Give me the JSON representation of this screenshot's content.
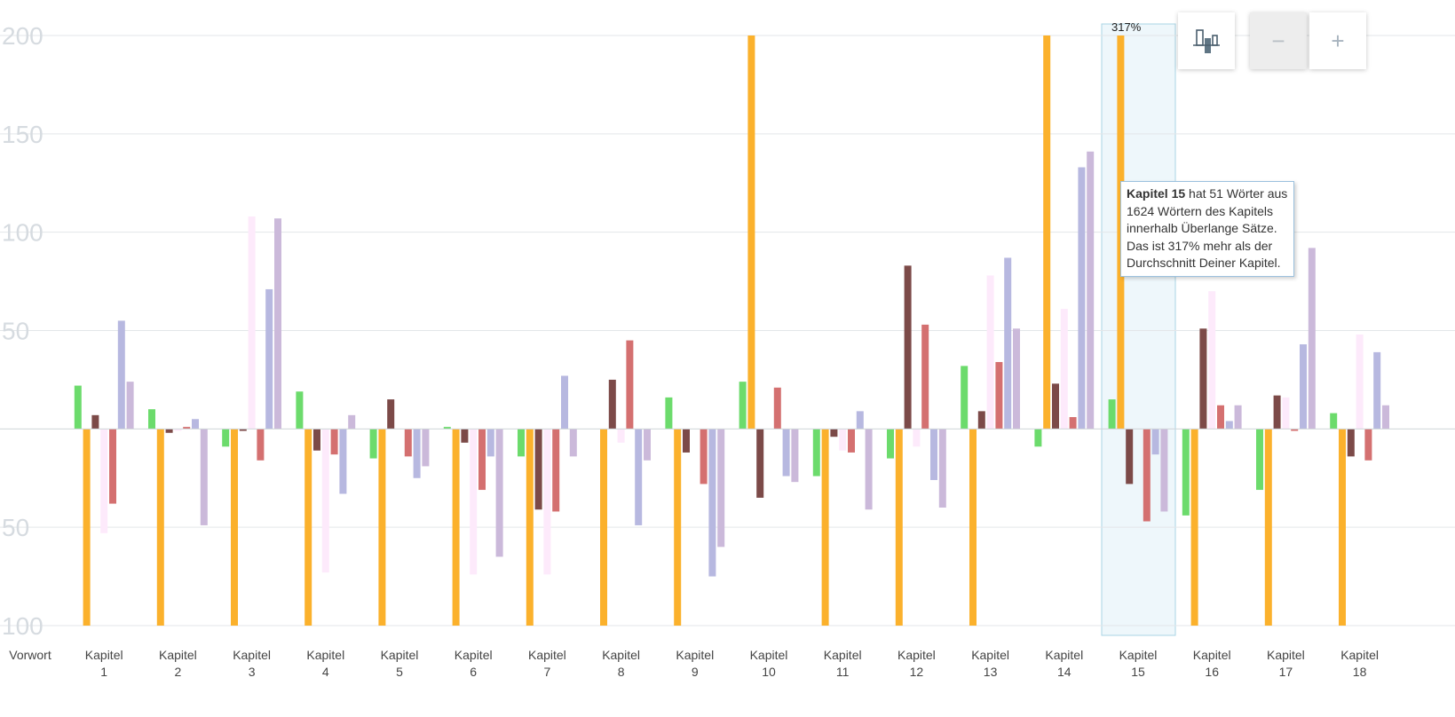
{
  "chart_data": {
    "type": "bar",
    "ylim": [
      -100,
      200
    ],
    "grid": true,
    "ytick_values": [
      -100,
      -50,
      50,
      100,
      150,
      200
    ],
    "ytick_labels": [
      "100",
      "50",
      "50",
      "100",
      "150",
      "200"
    ],
    "categories": [
      "Vorwort",
      "Kapitel\n1",
      "Kapitel\n2",
      "Kapitel\n3",
      "Kapitel\n4",
      "Kapitel\n5",
      "Kapitel\n6",
      "Kapitel\n7",
      "Kapitel\n8",
      "Kapitel\n9",
      "Kapitel\n10",
      "Kapitel\n11",
      "Kapitel\n12",
      "Kapitel\n13",
      "Kapitel\n14",
      "Kapitel\n15",
      "Kapitel\n16",
      "Kapitel\n17",
      "Kapitel\n18"
    ],
    "series": [
      {
        "color": "#6cdb6c",
        "values": [
          null,
          22,
          10,
          -9,
          19,
          -15,
          1,
          -14,
          null,
          16,
          24,
          -24,
          -15,
          32,
          -9,
          15,
          -44,
          -31,
          8
        ]
      },
      {
        "color": "#fbb12c",
        "values": [
          null,
          -100,
          -100,
          -100,
          -100,
          -100,
          -100,
          -100,
          -100,
          -100,
          200,
          -100,
          -100,
          -100,
          200,
          200,
          -100,
          -100,
          -100
        ]
      },
      {
        "color": "#7c4a48",
        "values": [
          null,
          7,
          -2,
          -1,
          -11,
          15,
          -7,
          -41,
          25,
          -12,
          -35,
          -4,
          83,
          9,
          23,
          -28,
          51,
          17,
          -14
        ]
      },
      {
        "color": "#fdeafb",
        "values": [
          null,
          -53,
          -1,
          108,
          -73,
          null,
          -74,
          -74,
          -7,
          null,
          null,
          -11,
          -9,
          78,
          61,
          null,
          70,
          16,
          48
        ]
      },
      {
        "color": "#d47070",
        "values": [
          null,
          -38,
          1,
          -16,
          -13,
          -14,
          -31,
          -42,
          45,
          -28,
          21,
          -12,
          53,
          34,
          6,
          -47,
          12,
          -1,
          -16
        ]
      },
      {
        "color": "#b7b8e0",
        "values": [
          null,
          55,
          5,
          71,
          -33,
          -25,
          -14,
          27,
          -49,
          -75,
          -24,
          9,
          -26,
          87,
          133,
          -13,
          4,
          43,
          39
        ]
      },
      {
        "color": "#cbb9da",
        "values": [
          null,
          24,
          -49,
          107,
          7,
          -19,
          -65,
          -14,
          -16,
          -60,
          -27,
          -41,
          -40,
          51,
          141,
          -42,
          12,
          92,
          12
        ]
      }
    ],
    "highlight_index": 15,
    "highlight_label": "317%",
    "tooltip": {
      "bold": "Kapitel 15",
      "text": " hat 51 Wörter aus 1624 Wörtern des Kapitels innerhalb Überlange Sätze. Das ist 317% mehr als der Durchschnitt Deiner Kapitel."
    }
  },
  "controls": {
    "chart_icon": "bar-chart-toggle-icon",
    "zoom_out": "−",
    "zoom_in": "+"
  }
}
